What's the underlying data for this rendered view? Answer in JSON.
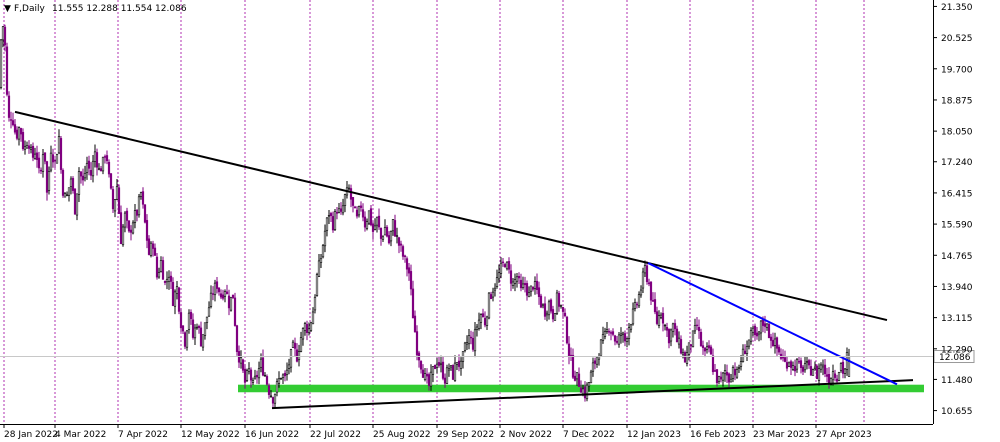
{
  "header": {
    "symbol_label": "F,Daily",
    "ohlc": "11.555 12.288 11.554 12.086"
  },
  "chart_data": {
    "type": "candlestick",
    "symbol": "F",
    "timeframe": "Daily",
    "x_ticks": [
      "28 Jan 2022",
      "4 Mar 2022",
      "7 Apr 2022",
      "12 May 2022",
      "16 Jun 2022",
      "22 Jul 2022",
      "25 Aug 2022",
      "29 Sep 2022",
      "2 Nov 2022",
      "7 Dec 2022",
      "12 Jan 2023",
      "16 Feb 2023",
      "23 Mar 2023",
      "27 Apr 2023"
    ],
    "y_ticks": [
      21.35,
      20.525,
      19.7,
      18.875,
      18.05,
      17.24,
      16.415,
      15.59,
      14.765,
      13.94,
      13.115,
      12.29,
      11.48,
      10.655
    ],
    "ylim": [
      10.3,
      21.52
    ],
    "current_price": 12.086,
    "last_bar": {
      "open": 11.555,
      "high": 12.288,
      "low": 11.554,
      "close": 12.086
    },
    "colors": {
      "up": "#000000",
      "down": "#800080",
      "grid": "#a000a0",
      "support_zone": "#33cc33",
      "downtrend": "#0000ff",
      "trendline": "#000000"
    },
    "path": [
      [
        0,
        19.2
      ],
      [
        3,
        21.1
      ],
      [
        6,
        20.3
      ],
      [
        9,
        18.3
      ],
      [
        13,
        18.5
      ],
      [
        17,
        17.9
      ],
      [
        21,
        18.2
      ],
      [
        25,
        17.5
      ],
      [
        29,
        17.9
      ],
      [
        33,
        17.3
      ],
      [
        37,
        17.6
      ],
      [
        41,
        16.7
      ],
      [
        45,
        17.8
      ],
      [
        48,
        16.4
      ],
      [
        52,
        17.6
      ],
      [
        56,
        17.2
      ],
      [
        60,
        17.9
      ],
      [
        63,
        16.6
      ],
      [
        67,
        16.2
      ],
      [
        72,
        16.8
      ],
      [
        76,
        16.0
      ],
      [
        80,
        17.0
      ],
      [
        84,
        16.7
      ],
      [
        88,
        17.2
      ],
      [
        92,
        16.9
      ],
      [
        96,
        17.5
      ],
      [
        100,
        17.0
      ],
      [
        104,
        17.2
      ],
      [
        107,
        17.6
      ],
      [
        110,
        16.8
      ],
      [
        114,
        16.0
      ],
      [
        118,
        16.6
      ],
      [
        122,
        15.2
      ],
      [
        126,
        15.8
      ],
      [
        130,
        15.3
      ],
      [
        134,
        15.7
      ],
      [
        138,
        15.9
      ],
      [
        142,
        16.4
      ],
      [
        146,
        15.6
      ],
      [
        150,
        14.8
      ],
      [
        154,
        15.1
      ],
      [
        158,
        14.2
      ],
      [
        162,
        14.6
      ],
      [
        166,
        14.0
      ],
      [
        170,
        14.3
      ],
      [
        174,
        13.6
      ],
      [
        178,
        13.9
      ],
      [
        182,
        13.0
      ],
      [
        186,
        12.5
      ],
      [
        190,
        13.3
      ],
      [
        194,
        12.6
      ],
      [
        198,
        13.0
      ],
      [
        202,
        12.5
      ],
      [
        206,
        12.9
      ],
      [
        210,
        13.4
      ],
      [
        214,
        13.8
      ],
      [
        218,
        14.0
      ],
      [
        222,
        13.7
      ],
      [
        226,
        13.9
      ],
      [
        230,
        13.5
      ],
      [
        234,
        13.7
      ],
      [
        238,
        12.3
      ],
      [
        242,
        11.9
      ],
      [
        246,
        11.4
      ],
      [
        250,
        11.7
      ],
      [
        254,
        11.3
      ],
      [
        258,
        11.6
      ],
      [
        262,
        11.9
      ],
      [
        266,
        11.6
      ],
      [
        270,
        11.2
      ],
      [
        274,
        11.0
      ],
      [
        278,
        11.3
      ],
      [
        282,
        11.6
      ],
      [
        286,
        11.5
      ],
      [
        290,
        11.9
      ],
      [
        294,
        12.3
      ],
      [
        298,
        12.1
      ],
      [
        302,
        12.6
      ],
      [
        306,
        12.9
      ],
      [
        310,
        12.8
      ],
      [
        314,
        13.3
      ],
      [
        318,
        14.2
      ],
      [
        322,
        14.7
      ],
      [
        326,
        15.4
      ],
      [
        330,
        15.9
      ],
      [
        334,
        15.6
      ],
      [
        338,
        16.0
      ],
      [
        342,
        15.8
      ],
      [
        346,
        16.3
      ],
      [
        350,
        16.5
      ],
      [
        354,
        16.0
      ],
      [
        358,
        15.7
      ],
      [
        362,
        16.1
      ],
      [
        366,
        15.6
      ],
      [
        370,
        15.9
      ],
      [
        374,
        15.4
      ],
      [
        378,
        15.7
      ],
      [
        382,
        15.2
      ],
      [
        386,
        15.5
      ],
      [
        390,
        15.1
      ],
      [
        394,
        15.6
      ],
      [
        398,
        15.2
      ],
      [
        402,
        14.9
      ],
      [
        406,
        14.6
      ],
      [
        410,
        14.3
      ],
      [
        414,
        13.2
      ],
      [
        418,
        12.3
      ],
      [
        422,
        11.9
      ],
      [
        426,
        11.5
      ],
      [
        430,
        11.3
      ],
      [
        434,
        11.7
      ],
      [
        438,
        12.0
      ],
      [
        442,
        11.8
      ],
      [
        446,
        11.5
      ],
      [
        450,
        11.8
      ],
      [
        454,
        11.6
      ],
      [
        458,
        12.0
      ],
      [
        462,
        11.8
      ],
      [
        466,
        12.3
      ],
      [
        470,
        12.6
      ],
      [
        474,
        12.4
      ],
      [
        478,
        12.9
      ],
      [
        482,
        13.2
      ],
      [
        486,
        13.0
      ],
      [
        490,
        13.6
      ],
      [
        494,
        13.9
      ],
      [
        498,
        14.1
      ],
      [
        502,
        14.4
      ],
      [
        506,
        14.6
      ],
      [
        510,
        14.3
      ],
      [
        514,
        14.0
      ],
      [
        518,
        14.2
      ],
      [
        522,
        13.8
      ],
      [
        526,
        14.0
      ],
      [
        530,
        13.7
      ],
      [
        534,
        14.0
      ],
      [
        538,
        13.8
      ],
      [
        542,
        13.5
      ],
      [
        546,
        13.3
      ],
      [
        550,
        13.5
      ],
      [
        554,
        13.2
      ],
      [
        558,
        13.6
      ],
      [
        562,
        13.4
      ],
      [
        566,
        13.0
      ],
      [
        570,
        12.2
      ],
      [
        574,
        11.7
      ],
      [
        578,
        11.5
      ],
      [
        582,
        11.3
      ],
      [
        586,
        11.1
      ],
      [
        590,
        11.4
      ],
      [
        594,
        11.8
      ],
      [
        598,
        12.1
      ],
      [
        602,
        12.4
      ],
      [
        606,
        12.6
      ],
      [
        610,
        12.9
      ],
      [
        614,
        12.7
      ],
      [
        618,
        12.4
      ],
      [
        622,
        12.7
      ],
      [
        626,
        12.5
      ],
      [
        630,
        12.9
      ],
      [
        634,
        13.2
      ],
      [
        638,
        13.5
      ],
      [
        642,
        13.9
      ],
      [
        646,
        14.4
      ],
      [
        650,
        14.0
      ],
      [
        654,
        13.4
      ],
      [
        658,
        13.0
      ],
      [
        662,
        13.3
      ],
      [
        666,
        12.9
      ],
      [
        670,
        12.6
      ],
      [
        674,
        12.9
      ],
      [
        678,
        12.5
      ],
      [
        682,
        12.3
      ],
      [
        686,
        12.0
      ],
      [
        690,
        12.3
      ],
      [
        694,
        12.6
      ],
      [
        698,
        12.9
      ],
      [
        702,
        12.4
      ],
      [
        706,
        12.1
      ],
      [
        710,
        12.3
      ],
      [
        714,
        11.8
      ],
      [
        718,
        11.5
      ],
      [
        722,
        11.4
      ],
      [
        726,
        11.7
      ],
      [
        730,
        11.5
      ],
      [
        734,
        11.8
      ],
      [
        738,
        11.6
      ],
      [
        742,
        12.0
      ],
      [
        746,
        12.3
      ],
      [
        750,
        12.5
      ],
      [
        754,
        12.7
      ],
      [
        758,
        12.5
      ],
      [
        762,
        12.9
      ],
      [
        766,
        13.0
      ],
      [
        770,
        12.7
      ],
      [
        774,
        12.5
      ],
      [
        778,
        12.3
      ],
      [
        782,
        12.1
      ],
      [
        786,
        11.9
      ],
      [
        790,
        12.0
      ],
      [
        794,
        11.8
      ],
      [
        798,
        11.9
      ],
      [
        802,
        11.7
      ],
      [
        806,
        11.9
      ],
      [
        810,
        11.7
      ],
      [
        814,
        11.8
      ],
      [
        818,
        11.6
      ],
      [
        822,
        11.9
      ],
      [
        826,
        11.7
      ],
      [
        830,
        11.5
      ],
      [
        834,
        11.7
      ],
      [
        838,
        11.6
      ],
      [
        842,
        11.9
      ],
      [
        845,
        11.6
      ],
      [
        848,
        12.086
      ]
    ],
    "trendlines": [
      {
        "name": "upper-resistance",
        "color": "#000000",
        "points": [
          [
            15,
            18.56
          ],
          [
            887,
            13.05
          ]
        ]
      },
      {
        "name": "lower-support",
        "color": "#000000",
        "points": [
          [
            272,
            10.72
          ],
          [
            913,
            11.46
          ]
        ]
      },
      {
        "name": "short-downtrend",
        "color": "#0000ff",
        "points": [
          [
            648,
            14.56
          ],
          [
            897,
            11.35
          ]
        ]
      }
    ],
    "support_zone": {
      "from_x": 238,
      "to_x": 924,
      "low": 11.14,
      "high": 11.34
    },
    "grid": "vertical-dashed"
  }
}
